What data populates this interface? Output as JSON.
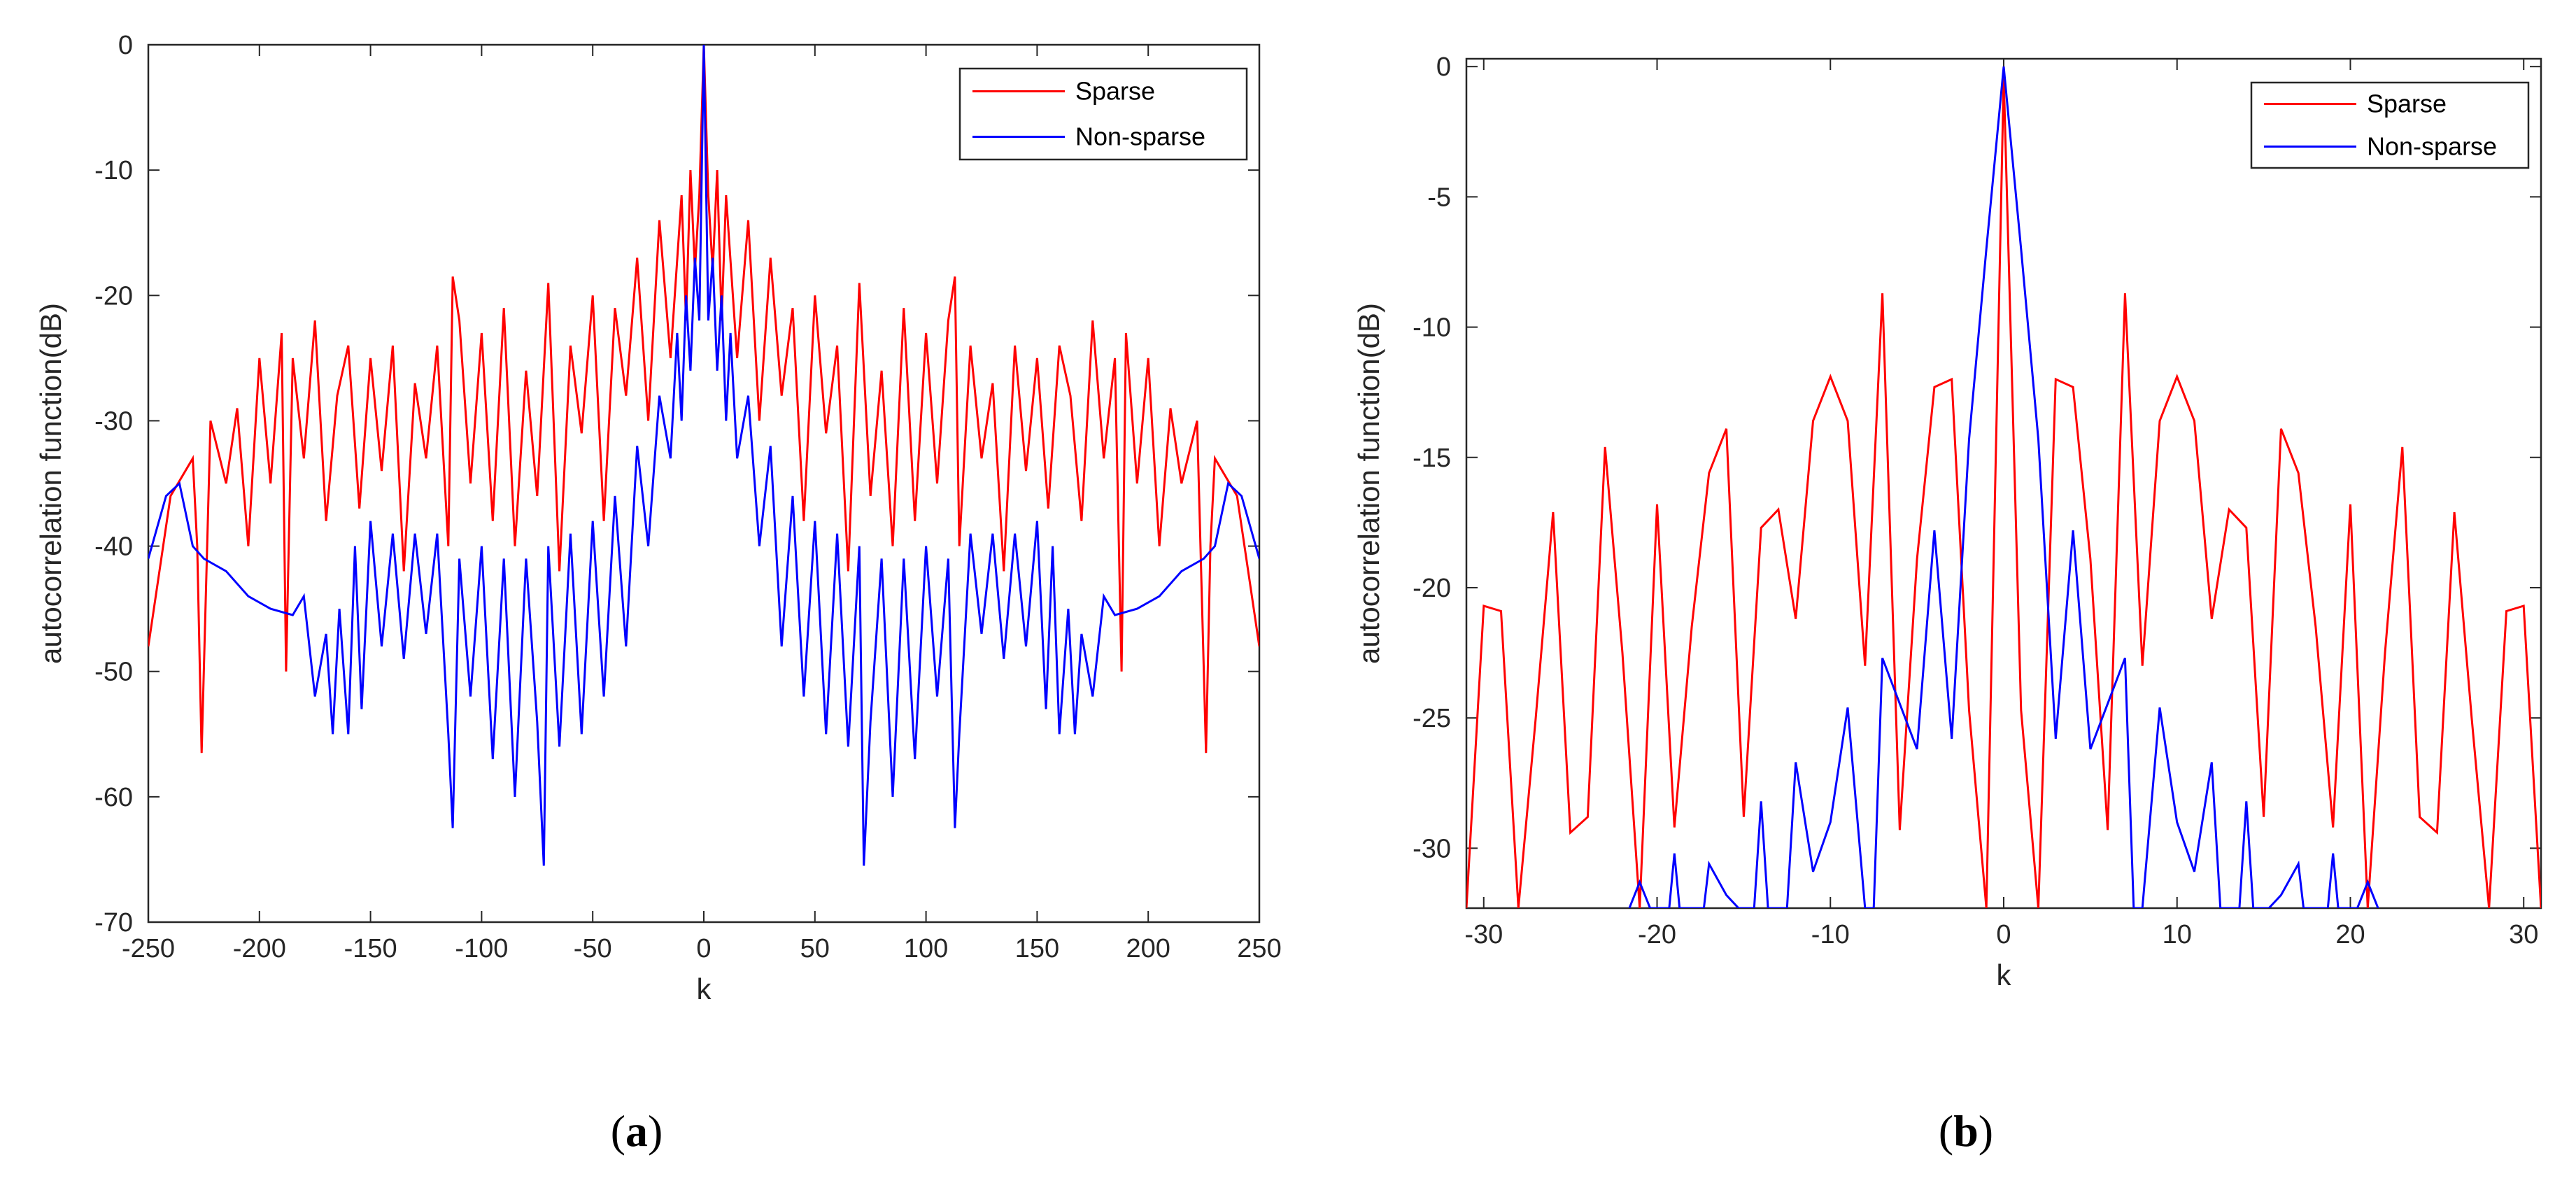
{
  "colors": {
    "sparse": "#ff0000",
    "nonsparse": "#0000ff",
    "axis": "#262626"
  },
  "chart_data": [
    {
      "type": "line",
      "panel": "a",
      "caption": {
        "open": "(",
        "letter": "a",
        "close": ")"
      },
      "xlabel": "k",
      "ylabel": "autocorrelation  function(dB)",
      "xlim": [
        -250,
        250
      ],
      "ylim": [
        -70,
        0
      ],
      "xticks": [
        -250,
        -200,
        -150,
        -100,
        -50,
        0,
        50,
        100,
        150,
        200,
        250
      ],
      "yticks": [
        0,
        -10,
        -20,
        -30,
        -40,
        -50,
        -60,
        -70
      ],
      "legend": {
        "position": "top-right"
      },
      "series": [
        {
          "name": "Sparse",
          "color": "#ff0000",
          "x": [
            -250,
            -240,
            -230,
            -228,
            -226,
            -222,
            -215,
            -210,
            -205,
            -200,
            -195,
            -190,
            -188,
            -185,
            -180,
            -175,
            -170,
            -165,
            -160,
            -155,
            -150,
            -145,
            -140,
            -135,
            -130,
            -125,
            -120,
            -115,
            -113,
            -110,
            -105,
            -100,
            -95,
            -90,
            -85,
            -80,
            -75,
            -70,
            -65,
            -60,
            -55,
            -50,
            -45,
            -40,
            -35,
            -30,
            -25,
            -20,
            -15,
            -10,
            -8,
            -6,
            -4,
            -2,
            0,
            2,
            4,
            6,
            8,
            10,
            15,
            20,
            25,
            30,
            35,
            40,
            45,
            50,
            55,
            60,
            65,
            70,
            75,
            80,
            85,
            90,
            95,
            100,
            105,
            110,
            113,
            115,
            120,
            125,
            130,
            135,
            140,
            145,
            150,
            155,
            160,
            165,
            170,
            175,
            180,
            185,
            188,
            190,
            195,
            200,
            205,
            210,
            215,
            222,
            226,
            228,
            230,
            240,
            250
          ],
          "y": [
            -48,
            -36,
            -33,
            -40,
            -56.5,
            -30,
            -35,
            -29,
            -40,
            -25,
            -35,
            -23,
            -50,
            -25,
            -33,
            -22,
            -38,
            -28,
            -24,
            -37,
            -25,
            -34,
            -24,
            -42,
            -27,
            -33,
            -24,
            -40,
            -18.5,
            -22,
            -35,
            -23,
            -38,
            -21,
            -40,
            -26,
            -36,
            -19,
            -42,
            -24,
            -31,
            -20,
            -38,
            -21,
            -28,
            -17,
            -30,
            -14,
            -25,
            -12,
            -22,
            -10,
            -18,
            -12,
            0,
            -12,
            -18,
            -10,
            -22,
            -12,
            -25,
            -14,
            -30,
            -17,
            -28,
            -21,
            -38,
            -20,
            -31,
            -24,
            -42,
            -19,
            -36,
            -26,
            -40,
            -21,
            -38,
            -23,
            -35,
            -22,
            -18.5,
            -40,
            -24,
            -33,
            -27,
            -42,
            -24,
            -34,
            -25,
            -37,
            -24,
            -28,
            -38,
            -22,
            -33,
            -25,
            -50,
            -23,
            -35,
            -25,
            -40,
            -29,
            -35,
            -30,
            -56.5,
            -40,
            -33,
            -36,
            -48
          ]
        },
        {
          "name": "Non-sparse",
          "color": "#0000ff",
          "x": [
            -250,
            -242,
            -236,
            -230,
            -225,
            -215,
            -205,
            -195,
            -185,
            -180,
            -175,
            -170,
            -167,
            -164,
            -160,
            -157,
            -154,
            -150,
            -145,
            -140,
            -135,
            -130,
            -125,
            -120,
            -115,
            -113,
            -110,
            -105,
            -100,
            -95,
            -90,
            -85,
            -80,
            -75,
            -72,
            -70,
            -65,
            -60,
            -55,
            -50,
            -45,
            -40,
            -35,
            -30,
            -25,
            -20,
            -15,
            -12,
            -10,
            -8,
            -6,
            -4,
            -2,
            0,
            2,
            4,
            6,
            8,
            10,
            12,
            15,
            20,
            25,
            30,
            35,
            40,
            45,
            50,
            55,
            60,
            65,
            70,
            72,
            75,
            80,
            85,
            90,
            95,
            100,
            105,
            110,
            113,
            115,
            120,
            125,
            130,
            135,
            140,
            145,
            150,
            154,
            157,
            160,
            164,
            167,
            170,
            175,
            180,
            185,
            195,
            205,
            215,
            225,
            230,
            236,
            242,
            250
          ],
          "y": [
            -41,
            -36,
            -35,
            -40,
            -41,
            -42,
            -44,
            -45,
            -45.5,
            -44,
            -52,
            -47,
            -55,
            -45,
            -55,
            -40,
            -53,
            -38,
            -48,
            -39,
            -49,
            -39,
            -47,
            -39,
            -55,
            -62.5,
            -41,
            -52,
            -40,
            -57,
            -41,
            -60,
            -41,
            -54,
            -65.5,
            -40,
            -56,
            -39,
            -55,
            -38,
            -52,
            -36,
            -48,
            -32,
            -40,
            -28,
            -33,
            -23,
            -30,
            -20,
            -26,
            -17,
            -22,
            0,
            -22,
            -17,
            -26,
            -20,
            -30,
            -23,
            -33,
            -28,
            -40,
            -32,
            -48,
            -36,
            -52,
            -38,
            -55,
            -39,
            -56,
            -40,
            -65.5,
            -54,
            -41,
            -60,
            -41,
            -57,
            -40,
            -52,
            -41,
            -62.5,
            -55,
            -39,
            -47,
            -39,
            -49,
            -39,
            -48,
            -38,
            -53,
            -40,
            -55,
            -45,
            -55,
            -47,
            -52,
            -44,
            -45.5,
            -45,
            -44,
            -42,
            -41,
            -40,
            -35,
            -36,
            -41
          ]
        }
      ]
    },
    {
      "type": "line",
      "panel": "b",
      "caption": {
        "open": "(",
        "letter": "b",
        "close": ")"
      },
      "xlabel": "k",
      "ylabel": "autocorrelation  function(dB)",
      "xlim": [
        -31,
        31
      ],
      "ylim": [
        -32.3,
        0.3
      ],
      "xticks": [
        -30,
        -20,
        -10,
        0,
        10,
        20,
        30
      ],
      "yticks": [
        0,
        -5,
        -10,
        -15,
        -20,
        -25,
        -30
      ],
      "legend": {
        "position": "top-right"
      },
      "series": [
        {
          "name": "Sparse",
          "color": "#ff0000",
          "x": [
            -31,
            -30,
            -29,
            -28,
            -27,
            -26,
            -25,
            -24,
            -23,
            -22,
            -21,
            -20,
            -19,
            -18,
            -17,
            -16,
            -15,
            -14,
            -13,
            -12,
            -11,
            -10,
            -9,
            -8,
            -7,
            -6,
            -5,
            -4,
            -3,
            -2,
            -1,
            0,
            1,
            2,
            3,
            4,
            5,
            6,
            7,
            8,
            9,
            10,
            11,
            12,
            13,
            14,
            15,
            16,
            17,
            18,
            19,
            20,
            21,
            22,
            23,
            24,
            25,
            26,
            27,
            28,
            29,
            30,
            31
          ],
          "y": [
            -32.3,
            -20.7,
            -20.9,
            -32.3,
            -25,
            -17.1,
            -29.4,
            -28.8,
            -14.6,
            -22.5,
            -32.3,
            -16.8,
            -29.2,
            -21.5,
            -15.6,
            -13.9,
            -28.8,
            -17.7,
            -17,
            -21.2,
            -13.6,
            -11.9,
            -13.6,
            -23,
            -8.7,
            -29.3,
            -18.9,
            -12.3,
            -12,
            -24.7,
            -32.3,
            -0.4,
            -24.7,
            -32.3,
            -12,
            -12.3,
            -18.9,
            -29.3,
            -8.7,
            -23,
            -13.6,
            -11.9,
            -13.6,
            -21.2,
            -17,
            -17.7,
            -28.8,
            -13.9,
            -15.6,
            -21.5,
            -29.2,
            -16.8,
            -32.3,
            -22.5,
            -14.6,
            -28.8,
            -29.4,
            -17.1,
            -25,
            -32.3,
            -20.9,
            -20.7,
            -32.3
          ]
        },
        {
          "name": "Non-sparse",
          "color": "#0000ff",
          "x": [
            -21.6,
            -21,
            -20.4,
            -19.3,
            -19,
            -18.7,
            -17.3,
            -17,
            -16,
            -15.3,
            -14.4,
            -14,
            -13.6,
            -12.5,
            -12,
            -11,
            -10,
            -9,
            -8,
            -7.5,
            -7,
            -5,
            -4,
            -3,
            -2,
            -1,
            0,
            1,
            2,
            3,
            4,
            5,
            7,
            7.5,
            8,
            9,
            10,
            11,
            12,
            12.5,
            13.6,
            14,
            14.4,
            15.3,
            16,
            17,
            17.3,
            18.7,
            19,
            19.3,
            20.4,
            21,
            21.6
          ],
          "y": [
            -32.3,
            -31.3,
            -32.3,
            -32.3,
            -30.2,
            -32.3,
            -32.3,
            -30.6,
            -31.8,
            -32.3,
            -32.3,
            -28.2,
            -32.3,
            -32.3,
            -26.7,
            -30.9,
            -29,
            -24.6,
            -32.3,
            -32.3,
            -22.7,
            -26.2,
            -17.8,
            -25.8,
            -14.3,
            -7,
            0,
            -7,
            -14.3,
            -25.8,
            -17.8,
            -26.2,
            -22.7,
            -32.3,
            -32.3,
            -24.6,
            -29,
            -30.9,
            -26.7,
            -32.3,
            -32.3,
            -28.2,
            -32.3,
            -32.3,
            -31.8,
            -30.6,
            -32.3,
            -32.3,
            -30.2,
            -32.3,
            -32.3,
            -31.3,
            -32.3
          ]
        }
      ]
    }
  ]
}
